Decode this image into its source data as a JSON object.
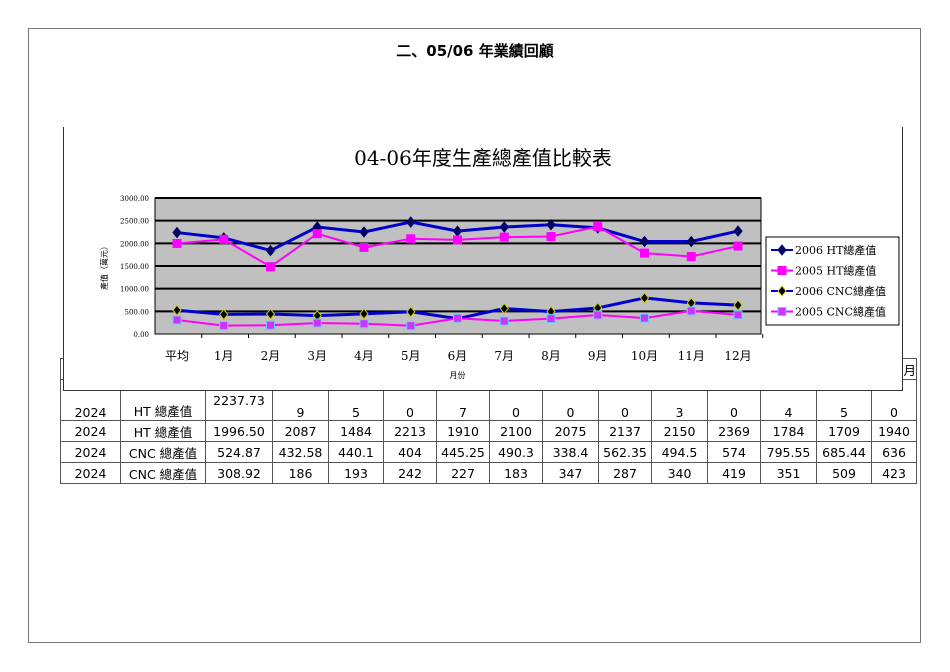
{
  "heading": "二、05/06 年業績回顧",
  "table": {
    "header_visible_fragment": "月",
    "rows": [
      {
        "year": "2024",
        "label": "HT 總產值",
        "cells": [
          "2237.73",
          "9",
          "5",
          "0",
          "7",
          "0",
          "0",
          "0",
          "3",
          "0",
          "4",
          "5",
          "0"
        ],
        "last_top_fragment": ".2"
      },
      {
        "year": "2024",
        "label": "HT 總產值",
        "cells": [
          "1996.50",
          "2087",
          "1484",
          "2213",
          "1910",
          "2100",
          "2075",
          "2137",
          "2150",
          "2369",
          "1784",
          "1709",
          "1940"
        ]
      },
      {
        "year": "2024",
        "label": "CNC 總產值",
        "cells": [
          "524.87",
          "432.58",
          "440.1",
          "404",
          "445.25",
          "490.3",
          "338.4",
          "562.35",
          "494.5",
          "574",
          "795.55",
          "685.44",
          "636"
        ]
      },
      {
        "year": "2024",
        "label": "CNC 總產值",
        "cells": [
          "308.92",
          "186",
          "193",
          "242",
          "227",
          "183",
          "347",
          "287",
          "340",
          "419",
          "351",
          "509",
          "423"
        ]
      }
    ]
  },
  "chart_data": {
    "type": "line",
    "title": "04-06年度生產總產值比較表",
    "xlabel": "月份",
    "ylabel": "產值（萬元）",
    "categories": [
      "平均",
      "1月",
      "2月",
      "3月",
      "4月",
      "5月",
      "6月",
      "7月",
      "8月",
      "9月",
      "10月",
      "11月",
      "12月"
    ],
    "ylim": [
      0,
      3000
    ],
    "yticks": [
      "0.00",
      "500.00",
      "1000.00",
      "1500.00",
      "2000.00",
      "2500.00",
      "3000.00"
    ],
    "grid": true,
    "legend": "right",
    "background": "#c0c0c0",
    "series": [
      {
        "name": "2006 HT總產值",
        "color": "#0000cc",
        "marker": "diamond",
        "marker_color": "#000066",
        "values": [
          2237.73,
          2120,
          1840,
          2360,
          2250,
          2470,
          2270,
          2360,
          2410,
          2340,
          2040,
          2040,
          2270
        ]
      },
      {
        "name": "2005 HT總產值",
        "color": "#ff00ff",
        "marker": "square",
        "marker_color": "#ff00ff",
        "values": [
          1996.5,
          2087,
          1484,
          2213,
          1910,
          2100,
          2075,
          2137,
          2150,
          2369,
          1784,
          1709,
          1940
        ]
      },
      {
        "name": "2006 CNC總產值",
        "color": "#0000cc",
        "marker": "diamond",
        "marker_color": "#000000",
        "values": [
          524.87,
          432.58,
          440.1,
          404,
          445.25,
          490.3,
          338.4,
          562.35,
          494.5,
          574,
          795.55,
          685.44,
          636
        ]
      },
      {
        "name": "2005 CNC總產值",
        "color": "#ff00ff",
        "marker": "square",
        "marker_color": "#cc33ff",
        "values": [
          308.92,
          186,
          193,
          242,
          227,
          183,
          347,
          287,
          340,
          419,
          351,
          509,
          423
        ]
      }
    ]
  }
}
